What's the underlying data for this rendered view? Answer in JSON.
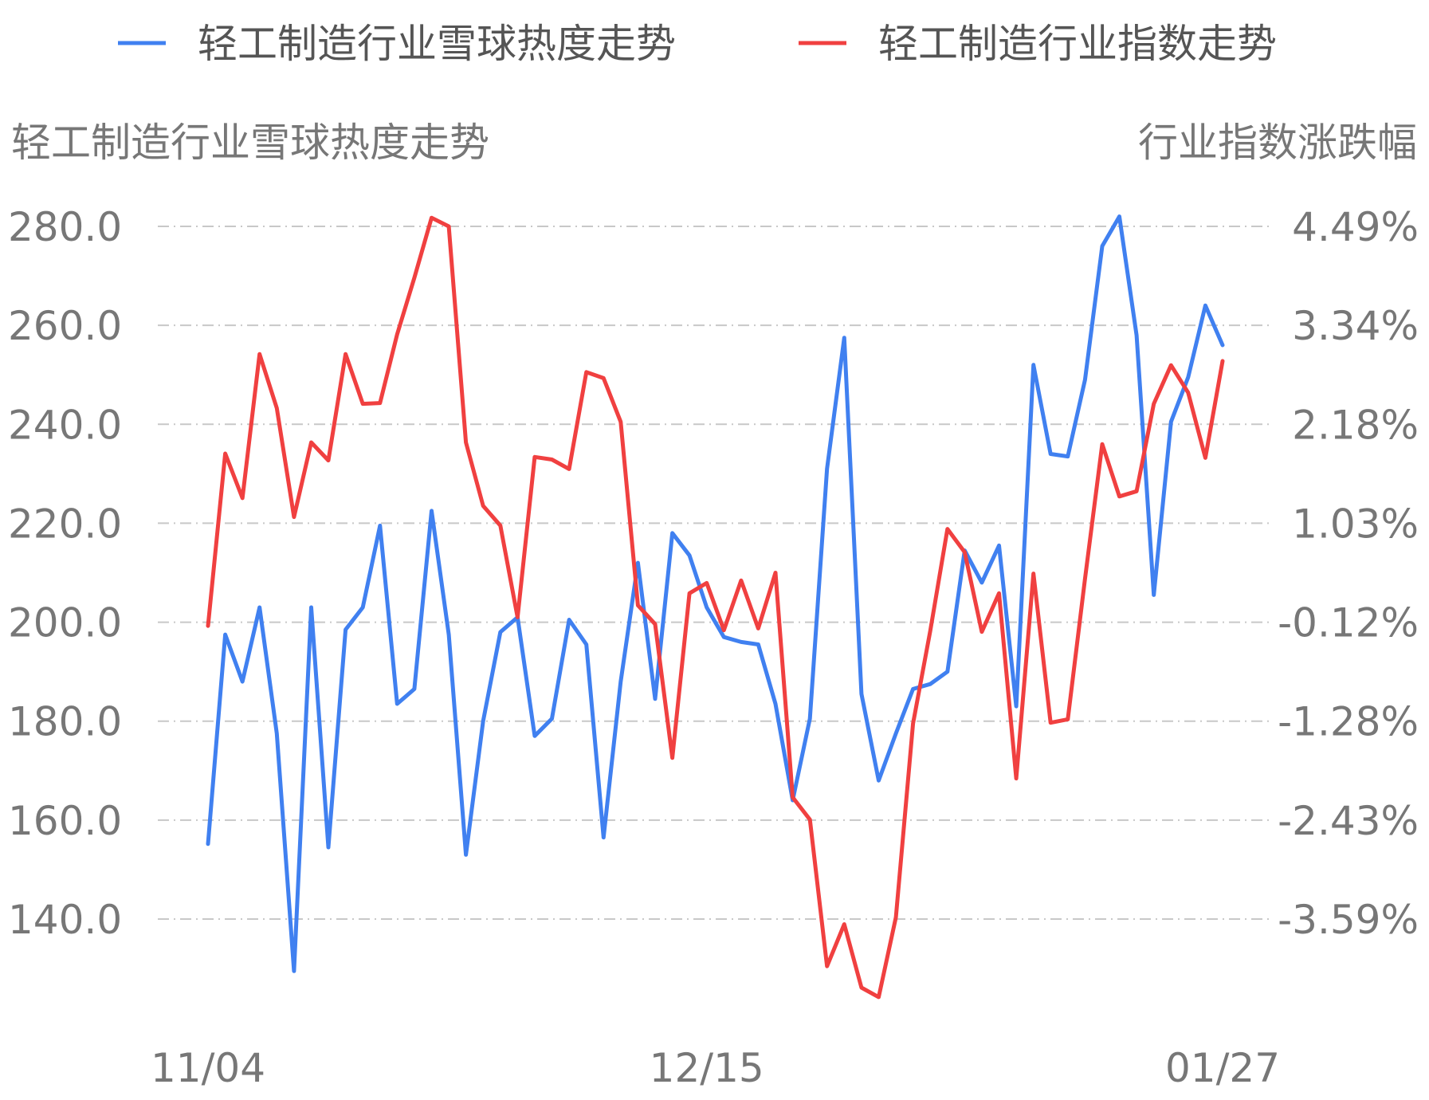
{
  "legend": [
    {
      "label": "轻工制造行业雪球热度走势",
      "color": "#4080f0"
    },
    {
      "label": "轻工制造行业指数走势",
      "color": "#f04040"
    }
  ],
  "chart_data": {
    "type": "line",
    "left_axis_title": "轻工制造行业雪球热度走势",
    "right_axis_title": "行业指数涨跌幅",
    "left_ticks": [
      "280.0",
      "260.0",
      "240.0",
      "220.0",
      "200.0",
      "180.0",
      "160.0",
      "140.0"
    ],
    "right_ticks": [
      "4.49%",
      "3.34%",
      "2.18%",
      "1.03%",
      "-0.12%",
      "-1.28%",
      "-2.43%",
      "-3.59%"
    ],
    "x_ticks": [
      {
        "label": "11/04",
        "index": 0
      },
      {
        "label": "12/15",
        "index": 29
      },
      {
        "label": "01/27",
        "index": 59
      }
    ],
    "ylim_left": [
      140,
      280
    ],
    "ylim_right": [
      -3.59,
      4.49
    ],
    "grid": true,
    "series": [
      {
        "name": "轻工制造行业雪球热度走势",
        "axis": "left",
        "color": "#4080f0",
        "values": [
          155.2,
          197.5,
          188.0,
          203.0,
          177.5,
          129.5,
          203.0,
          154.5,
          198.5,
          203.0,
          219.5,
          183.5,
          186.5,
          222.5,
          197.5,
          153.0,
          180.0,
          198.0,
          201.0,
          177.0,
          180.5,
          200.5,
          195.5,
          156.5,
          188.0,
          212.0,
          184.5,
          218.0,
          213.5,
          203.0,
          197.0,
          196.0,
          195.5,
          183.5,
          164.0,
          180.5,
          231.0,
          257.5,
          185.5,
          168.0,
          177.5,
          186.5,
          187.5,
          190.0,
          214.5,
          208.0,
          215.5,
          183.0,
          252.0,
          234.0,
          233.5,
          249.0,
          276.0,
          282.0,
          258.0,
          205.5,
          240.5,
          249.5,
          264.0,
          256.0
        ]
      },
      {
        "name": "轻工制造行业指数走势",
        "axis": "right",
        "color": "#f04040",
        "values": [
          -0.17,
          1.84,
          1.32,
          3.0,
          2.37,
          1.1,
          1.97,
          1.76,
          3.0,
          2.42,
          2.43,
          3.23,
          3.89,
          4.59,
          4.49,
          1.97,
          1.23,
          1.0,
          -0.07,
          1.8,
          1.77,
          1.66,
          2.79,
          2.72,
          2.21,
          0.07,
          -0.15,
          -1.71,
          0.21,
          0.33,
          -0.22,
          0.36,
          -0.2,
          0.45,
          -2.17,
          -2.43,
          -4.14,
          -3.65,
          -4.39,
          -4.5,
          -3.57,
          -1.31,
          -0.23,
          0.96,
          0.69,
          -0.24,
          0.21,
          -1.95,
          0.44,
          -1.3,
          -1.26,
          0.38,
          1.95,
          1.34,
          1.4,
          2.42,
          2.87,
          2.55,
          1.79,
          2.92
        ]
      }
    ]
  }
}
